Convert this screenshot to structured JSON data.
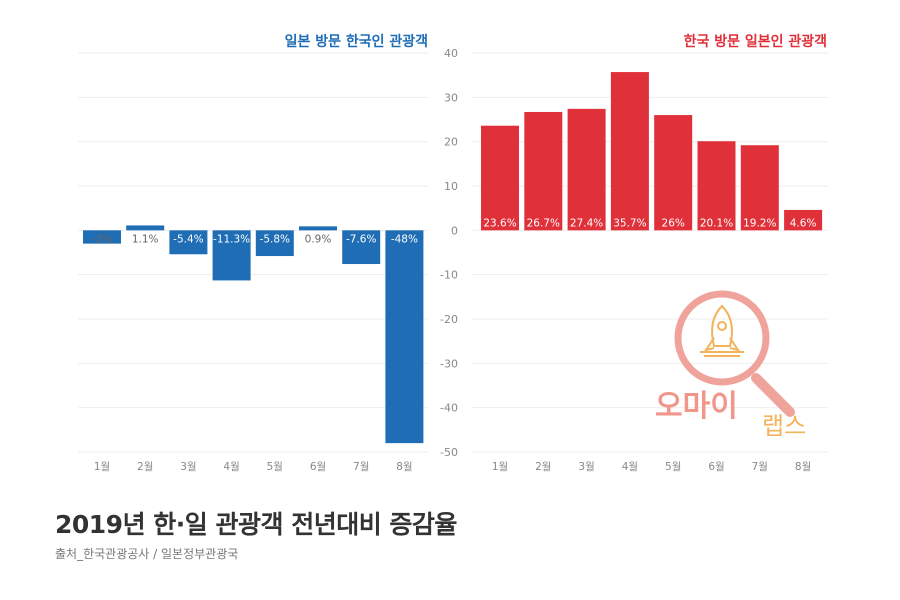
{
  "title": "2019년 한·일 관광객 전년대비 증감율",
  "source": "출처_한국관광공사 / 일본정부관광국",
  "watermark": {
    "text_main": "오마이",
    "text_sub": "랩스",
    "ring_color": "#f0a39a",
    "text_color": "#f2968c"
  },
  "colors": {
    "blue": "#1f6eb5",
    "red": "#e0303a",
    "grid": "#eeeeee",
    "axis_text": "#888888",
    "label_dark": "#666666"
  },
  "chart_data": [
    {
      "type": "bar",
      "title": "일본 방문 한국인 관광객",
      "title_color": "#1f6eb5",
      "categories": [
        "1월",
        "2월",
        "3월",
        "4월",
        "5월",
        "6월",
        "7월",
        "8월"
      ],
      "values": [
        -3,
        1.1,
        -5.4,
        -11.3,
        -5.8,
        0.9,
        -7.6,
        -48
      ],
      "labels": [
        "-3%",
        "1.1%",
        "-5.4%",
        "-11.3%",
        "-5.8%",
        "0.9%",
        "-7.6%",
        "-48%"
      ],
      "ylim": [
        -50,
        40
      ],
      "grid": true
    },
    {
      "type": "bar",
      "title": "한국 방문 일본인 관광객",
      "title_color": "#e0303a",
      "categories": [
        "1월",
        "2월",
        "3월",
        "4월",
        "5월",
        "6월",
        "7월",
        "8월"
      ],
      "values": [
        23.6,
        26.7,
        27.4,
        35.7,
        26,
        20.1,
        19.2,
        4.6
      ],
      "labels": [
        "23.6%",
        "26.7%",
        "27.4%",
        "35.7%",
        "26%",
        "20.1%",
        "19.2%",
        "4.6%"
      ],
      "ylim": [
        -50,
        40
      ],
      "yticks": [
        40,
        30,
        20,
        10,
        0,
        -10,
        -20,
        -30,
        -40,
        -50
      ],
      "grid": true
    }
  ]
}
